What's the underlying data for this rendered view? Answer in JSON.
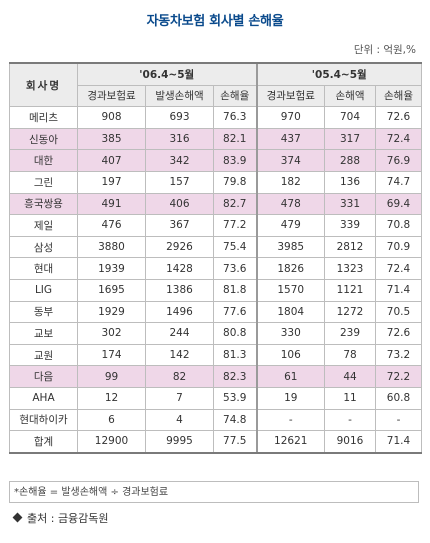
{
  "title": "자동차보험 회사별 손해율",
  "unit": "단위 : 억원,%",
  "header": {
    "company": "회사명",
    "period1": "'06.4~5월",
    "period2": "'05.4~5월",
    "cols1": [
      "경과보험료",
      "발생손해액",
      "손해율"
    ],
    "cols2": [
      "경과보험료",
      "손해액",
      "손해율"
    ]
  },
  "rows": [
    {
      "name": "메리츠",
      "a": "908",
      "b": "693",
      "c": "76.3",
      "d": "970",
      "e": "704",
      "f": "72.6",
      "highlight": false
    },
    {
      "name": "신동아",
      "a": "385",
      "b": "316",
      "c": "82.1",
      "d": "437",
      "e": "317",
      "f": "72.4",
      "highlight": true
    },
    {
      "name": "대한",
      "a": "407",
      "b": "342",
      "c": "83.9",
      "d": "374",
      "e": "288",
      "f": "76.9",
      "highlight": true
    },
    {
      "name": "그린",
      "a": "197",
      "b": "157",
      "c": "79.8",
      "d": "182",
      "e": "136",
      "f": "74.7",
      "highlight": false
    },
    {
      "name": "흥국쌍용",
      "a": "491",
      "b": "406",
      "c": "82.7",
      "d": "478",
      "e": "331",
      "f": "69.4",
      "highlight": true
    },
    {
      "name": "제일",
      "a": "476",
      "b": "367",
      "c": "77.2",
      "d": "479",
      "e": "339",
      "f": "70.8",
      "highlight": false
    },
    {
      "name": "삼성",
      "a": "3880",
      "b": "2926",
      "c": "75.4",
      "d": "3985",
      "e": "2812",
      "f": "70.9",
      "highlight": false
    },
    {
      "name": "현대",
      "a": "1939",
      "b": "1428",
      "c": "73.6",
      "d": "1826",
      "e": "1323",
      "f": "72.4",
      "highlight": false
    },
    {
      "name": "LIG",
      "a": "1695",
      "b": "1386",
      "c": "81.8",
      "d": "1570",
      "e": "1121",
      "f": "71.4",
      "highlight": false
    },
    {
      "name": "동부",
      "a": "1929",
      "b": "1496",
      "c": "77.6",
      "d": "1804",
      "e": "1272",
      "f": "70.5",
      "highlight": false
    },
    {
      "name": "교보",
      "a": "302",
      "b": "244",
      "c": "80.8",
      "d": "330",
      "e": "239",
      "f": "72.6",
      "highlight": false
    },
    {
      "name": "교원",
      "a": "174",
      "b": "142",
      "c": "81.3",
      "d": "106",
      "e": "78",
      "f": "73.2",
      "highlight": false
    },
    {
      "name": "다음",
      "a": "99",
      "b": "82",
      "c": "82.3",
      "d": "61",
      "e": "44",
      "f": "72.2",
      "highlight": true
    },
    {
      "name": "AHA",
      "a": "12",
      "b": "7",
      "c": "53.9",
      "d": "19",
      "e": "11",
      "f": "60.8",
      "highlight": false
    },
    {
      "name": "현대하이카",
      "a": "6",
      "b": "4",
      "c": "74.8",
      "d": "-",
      "e": "-",
      "f": "-",
      "highlight": false
    },
    {
      "name": "합계",
      "a": "12900",
      "b": "9995",
      "c": "77.5",
      "d": "12621",
      "e": "9016",
      "f": "71.4",
      "highlight": false,
      "total": true
    }
  ],
  "footnote": "*손해율 = 발생손해액 ÷ 경과보험료",
  "source": "출처 : 금융감독원"
}
